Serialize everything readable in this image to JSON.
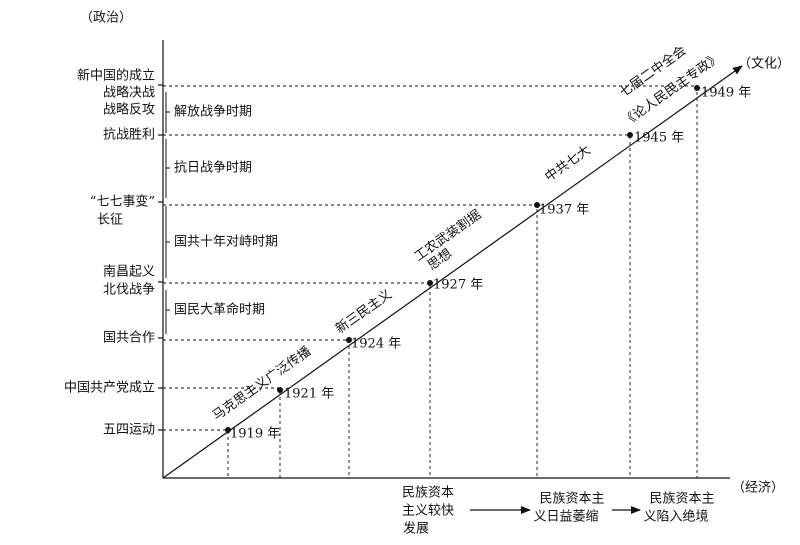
{
  "axes": {
    "politics": "（政治）",
    "culture": "（文化）",
    "economy": "（经济）"
  },
  "events": [
    "新中国的成立",
    "战略决战",
    "战略反攻",
    "抗战胜利",
    "“七七事变”",
    "长征",
    "南昌起义",
    "北伐战争",
    "国共合作",
    "中国共产党成立",
    "五四运动"
  ],
  "periods": [
    "解放战争时期",
    "抗日战争时期",
    "国共十年对峙时期",
    "国民大革命时期"
  ],
  "years": [
    "1919 年",
    "1921 年",
    "1924 年",
    "1927 年",
    "1937 年",
    "1945 年",
    "1949 年"
  ],
  "culture_labels": [
    "马克思主义广泛传播",
    "新三民主义",
    "工农武装割据",
    "思想",
    "中共七大",
    "七届二中全会",
    "《论人民民主专政》"
  ],
  "economy_labels": [
    [
      "民族资本",
      "主义较快",
      "发展"
    ],
    [
      "民族资本主",
      "义日益萎缩"
    ],
    [
      "民族资本主",
      "义陷入绝境"
    ]
  ]
}
